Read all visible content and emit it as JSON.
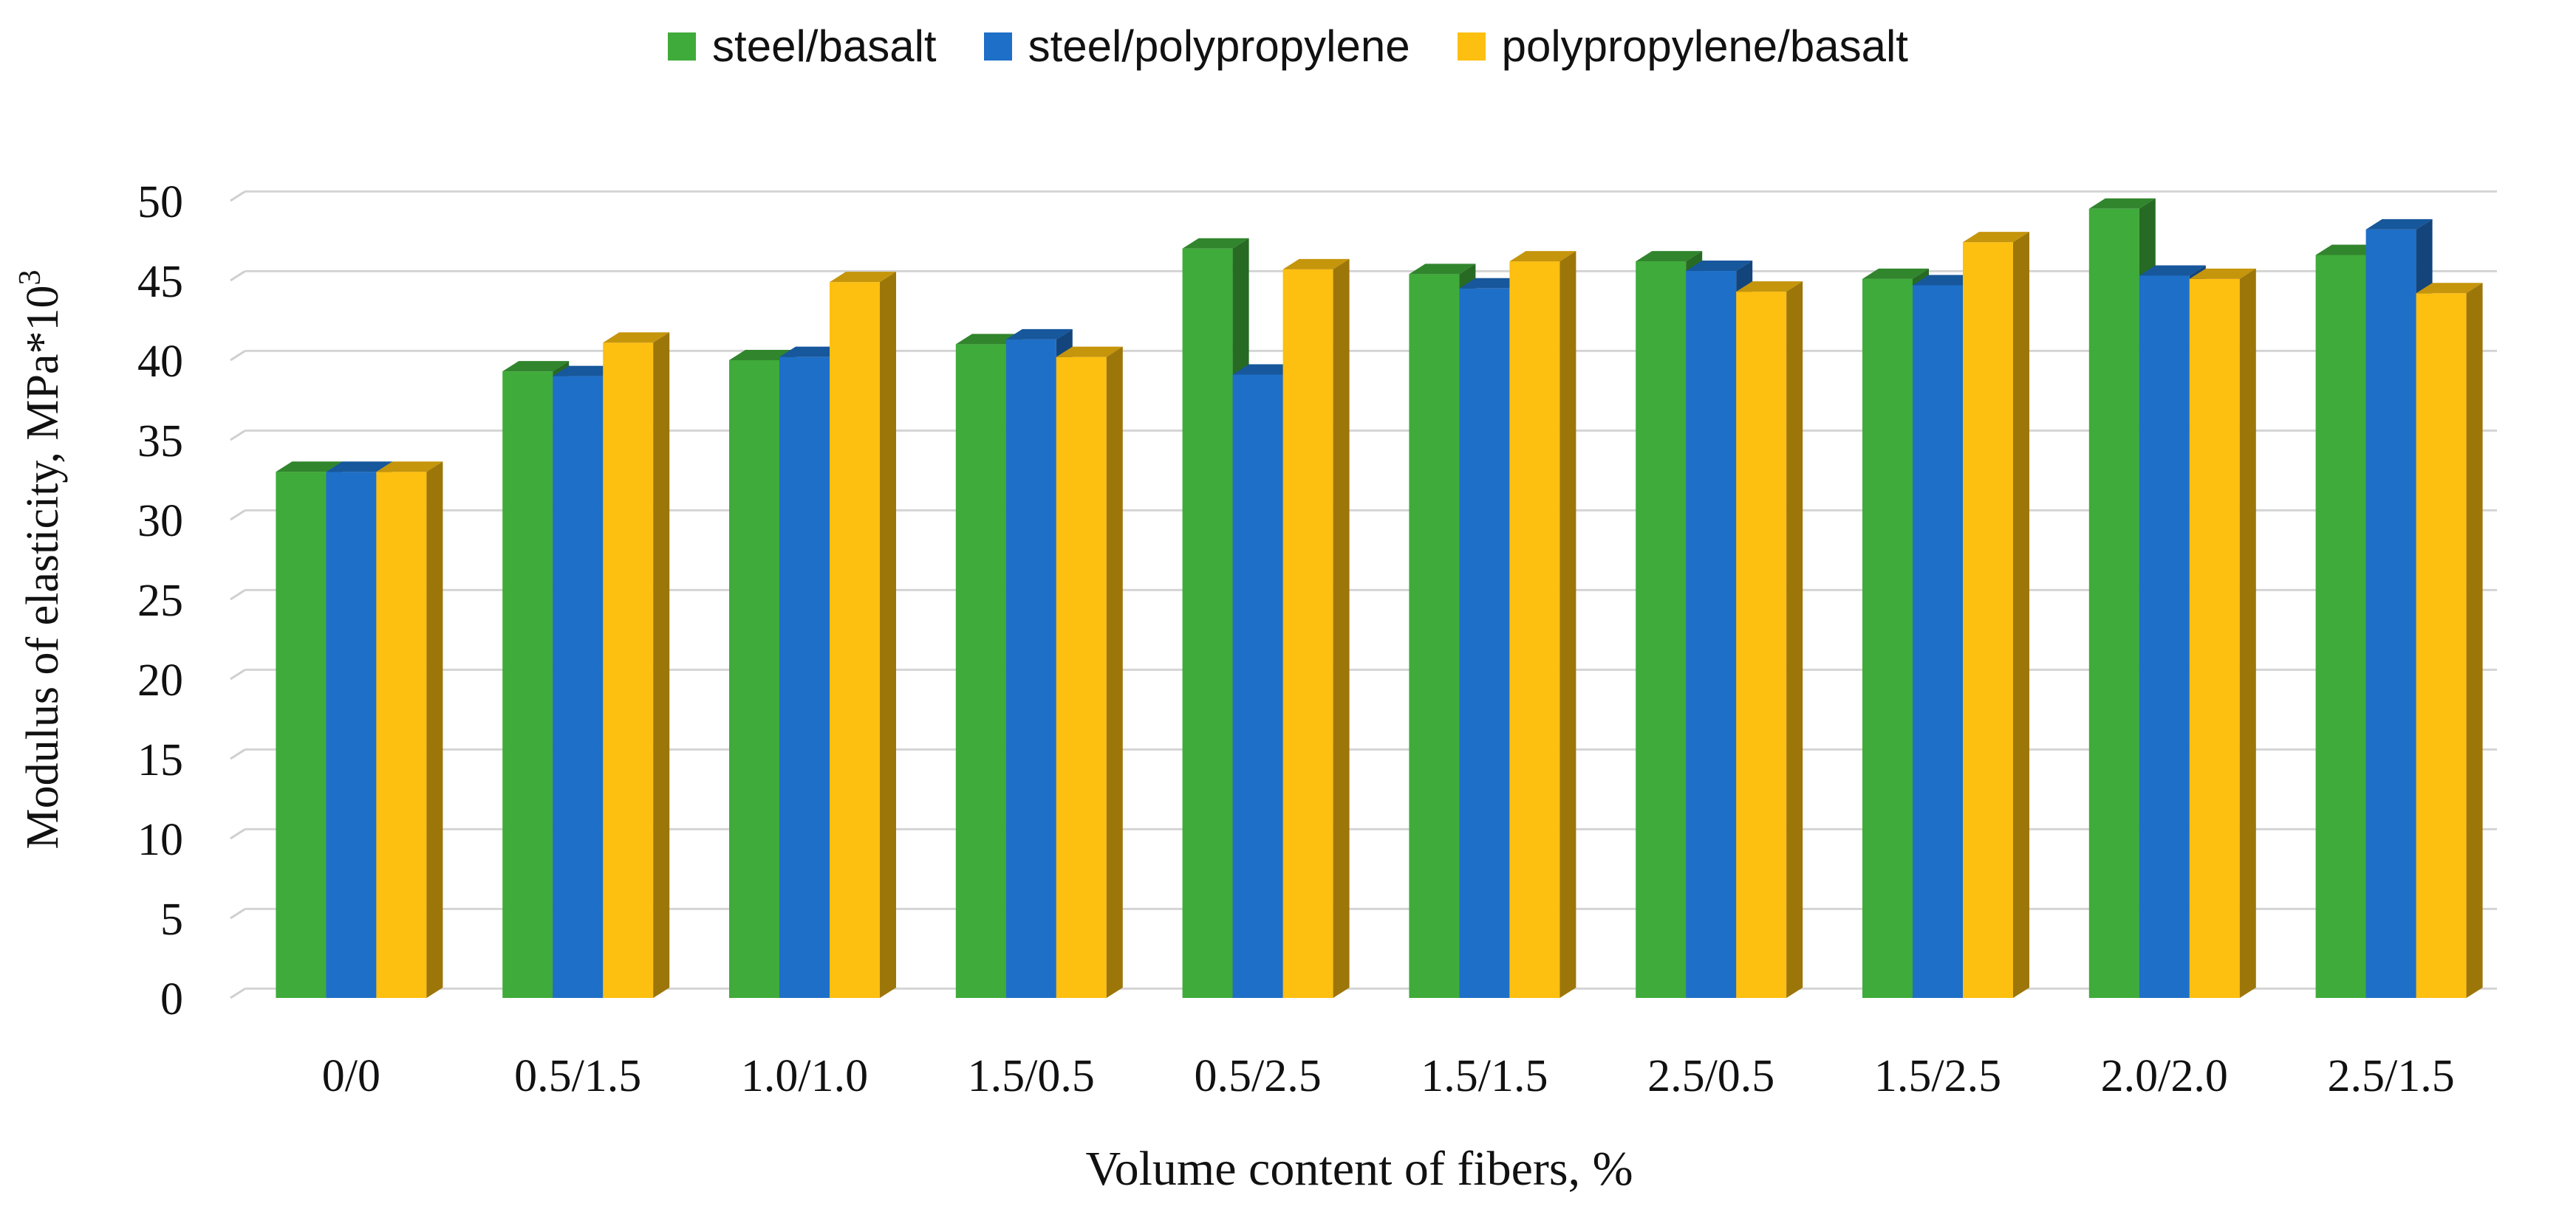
{
  "chart_data": {
    "type": "bar",
    "title": "",
    "xlabel": "Volume content of fibers,  %",
    "ylabel": "Modulus of elasticity, MPa*10",
    "ylabel_superscript": "3",
    "ylim": [
      0,
      50
    ],
    "yticks": [
      0,
      5,
      10,
      15,
      20,
      25,
      30,
      35,
      40,
      45,
      50
    ],
    "grid": true,
    "legend_position": "top",
    "categories": [
      "0/0",
      "0.5/1.5",
      "1.0/1.0",
      "1.5/0.5",
      "0.5/2.5",
      "1.5/1.5",
      "2.5/0.5",
      "1.5/2.5",
      "2.0/2.0",
      "2.5/1.5"
    ],
    "series": [
      {
        "name": "steel/basalt",
        "color": "#3fab3a",
        "values": [
          33.0,
          39.3,
          40.0,
          41.0,
          47.0,
          45.4,
          46.2,
          45.1,
          49.5,
          46.6
        ]
      },
      {
        "name": "steel/polypropylene",
        "color": "#1e6fc8",
        "values": [
          33.0,
          39.0,
          40.2,
          41.3,
          39.1,
          44.5,
          45.6,
          44.7,
          45.3,
          48.2
        ]
      },
      {
        "name": "polypropylene/basalt",
        "color": "#fdbf10",
        "values": [
          33.0,
          41.1,
          44.9,
          40.2,
          45.7,
          46.2,
          44.3,
          47.4,
          45.1,
          44.2
        ]
      }
    ]
  }
}
